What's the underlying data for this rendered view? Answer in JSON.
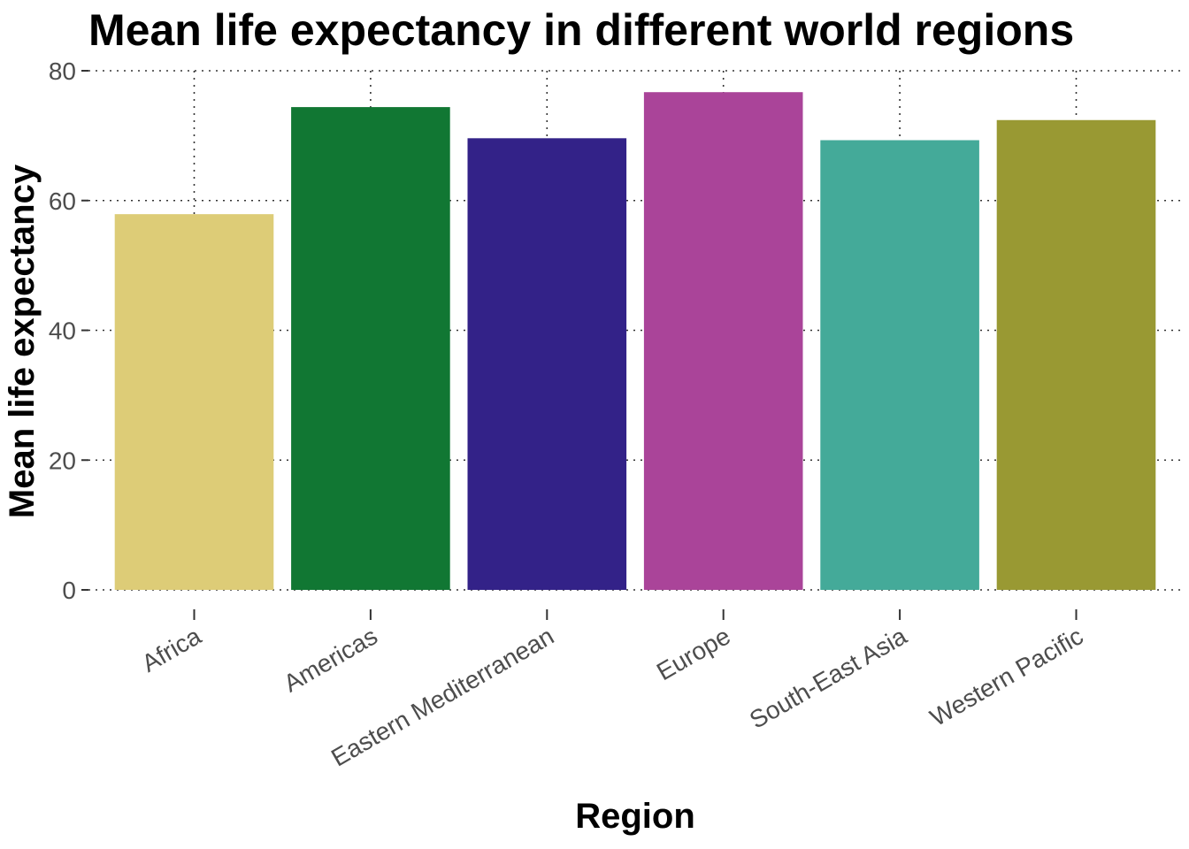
{
  "chart_data": {
    "type": "bar",
    "title": "Mean life expectancy in different world regions",
    "xlabel": "Region",
    "ylabel": "Mean life expectancy",
    "categories": [
      "Africa",
      "Americas",
      "Eastern Mediterranean",
      "Europe",
      "South-East Asia",
      "Western Pacific"
    ],
    "values": [
      57.9,
      74.4,
      69.6,
      76.7,
      69.3,
      72.4
    ],
    "colors": [
      "#DDCC77",
      "#117733",
      "#332288",
      "#AA4499",
      "#44AA99",
      "#999933"
    ],
    "ylim": [
      0,
      80
    ],
    "yticks": [
      0,
      20,
      40,
      60,
      80
    ],
    "ytick_labels": [
      "0",
      "20",
      "40",
      "60",
      "80"
    ],
    "grid": true,
    "legend": "none"
  }
}
